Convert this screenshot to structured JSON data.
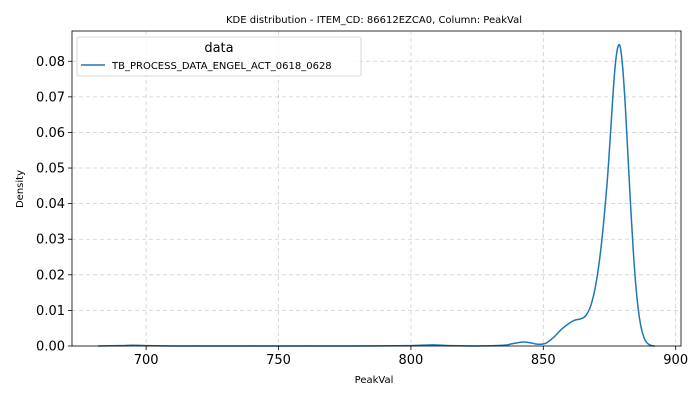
{
  "chart_data": {
    "type": "line",
    "title": "KDE distribution - ITEM_CD: 86612EZCA0, Column: PeakVal",
    "xlabel": "PeakVal",
    "ylabel": "Density",
    "xlim": [
      672,
      902
    ],
    "ylim": [
      0,
      0.0885
    ],
    "x_ticks": [
      700,
      750,
      800,
      850,
      900
    ],
    "x_tick_labels": [
      "700",
      "750",
      "800",
      "850",
      "900"
    ],
    "y_ticks": [
      0,
      0.01,
      0.02,
      0.03,
      0.04,
      0.05,
      0.06,
      0.07,
      0.08
    ],
    "y_tick_labels": [
      "0.00",
      "0.01",
      "0.02",
      "0.03",
      "0.04",
      "0.05",
      "0.06",
      "0.07",
      "0.08"
    ],
    "grid": true,
    "legend": {
      "title": "data",
      "placement": "top-left"
    },
    "series": [
      {
        "name": "TB_PROCESS_DATA_ENGEL_ACT_0618_0628",
        "color": "#1f77b4",
        "x": [
          682,
          690,
          695,
          700,
          710,
          720,
          740,
          760,
          780,
          800,
          808,
          815,
          825,
          835,
          838,
          842,
          845,
          848,
          851,
          854,
          857,
          860,
          862,
          864,
          866,
          868,
          870,
          872,
          874,
          875,
          876,
          877,
          878,
          879,
          880,
          881,
          882,
          883,
          884,
          885,
          886,
          887,
          888,
          889,
          890,
          891,
          892
        ],
        "y": [
          0.0,
          0.0001,
          0.0002,
          0.0001,
          0.0,
          0.0,
          0.0,
          0.0,
          0.0,
          0.0001,
          0.0003,
          0.0001,
          0.0,
          0.0002,
          0.0006,
          0.0011,
          0.0009,
          0.0005,
          0.0008,
          0.0025,
          0.0048,
          0.0065,
          0.0073,
          0.0076,
          0.0085,
          0.0115,
          0.018,
          0.029,
          0.045,
          0.0555,
          0.067,
          0.0775,
          0.0835,
          0.0842,
          0.078,
          0.067,
          0.053,
          0.039,
          0.0265,
          0.0165,
          0.0095,
          0.005,
          0.0024,
          0.001,
          0.0004,
          0.0001,
          0.0
        ]
      }
    ]
  }
}
